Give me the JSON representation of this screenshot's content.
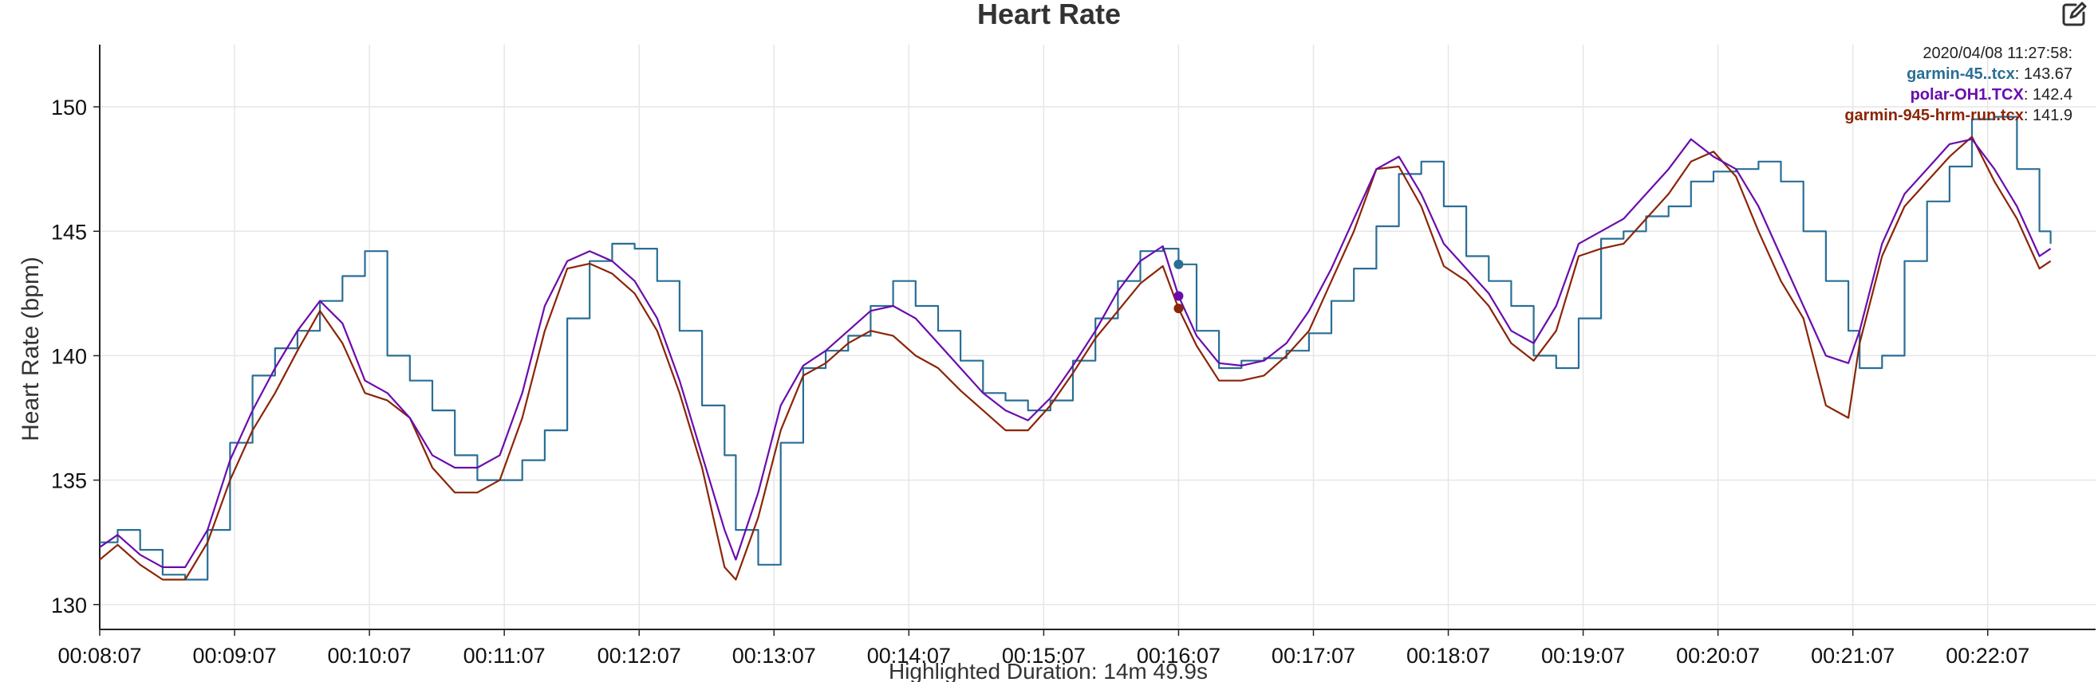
{
  "header": {
    "title": "Heart Rate",
    "edit_icon": "edit-square-pencil-icon"
  },
  "colors": {
    "garmin45": "#2a6e96",
    "polar": "#6a0dad",
    "garmin945": "#8b2508",
    "grid": "#e6e6e6",
    "axis": "#222222",
    "timestamp": "#222222"
  },
  "footer": {
    "highlighted_duration": "Highlighted Duration: 14m 49.9s"
  },
  "chart_data": {
    "type": "line",
    "title": "Heart Rate",
    "ylabel": "Heart Rate (bpm)",
    "xlabel": "",
    "ylim": [
      129,
      152.5
    ],
    "xlim_seconds": [
      487,
      1375
    ],
    "x_unit": "elapsed time (h:mm:ss)",
    "x_ticks": [
      "00:08:07",
      "00:09:07",
      "00:10:07",
      "00:11:07",
      "00:12:07",
      "00:13:07",
      "00:14:07",
      "00:15:07",
      "00:16:07",
      "00:17:07",
      "00:18:07",
      "00:19:07",
      "00:20:07",
      "00:21:07",
      "00:22:07"
    ],
    "y_ticks": [
      130,
      135,
      140,
      145,
      150
    ],
    "grid": true,
    "crosshair_time": "00:16:07",
    "tooltip": {
      "timestamp": "2020/04/08 11:27:58:",
      "entries": [
        {
          "name": "garmin-45..tcx",
          "value": "143.67"
        },
        {
          "name": "polar-OH1.TCX",
          "value": "142.4"
        },
        {
          "name": "garmin-945-hrm-run.tcx",
          "value": "141.9"
        }
      ]
    },
    "series": [
      {
        "name": "garmin-45..tcx",
        "color": "#2a6e96",
        "x": [
          "00:08:07",
          "00:08:15",
          "00:08:25",
          "00:08:35",
          "00:08:45",
          "00:08:55",
          "00:09:05",
          "00:09:15",
          "00:09:25",
          "00:09:35",
          "00:09:45",
          "00:09:55",
          "00:10:05",
          "00:10:15",
          "00:10:25",
          "00:10:35",
          "00:10:45",
          "00:10:55",
          "00:11:05",
          "00:11:15",
          "00:11:25",
          "00:11:35",
          "00:11:45",
          "00:11:55",
          "00:12:05",
          "00:12:15",
          "00:12:25",
          "00:12:35",
          "00:12:45",
          "00:12:50",
          "00:13:00",
          "00:13:10",
          "00:13:20",
          "00:13:30",
          "00:13:40",
          "00:13:50",
          "00:14:00",
          "00:14:10",
          "00:14:20",
          "00:14:30",
          "00:14:40",
          "00:14:50",
          "00:15:00",
          "00:15:10",
          "00:15:20",
          "00:15:30",
          "00:15:40",
          "00:15:50",
          "00:16:00",
          "00:16:07",
          "00:16:15",
          "00:16:25",
          "00:16:35",
          "00:16:45",
          "00:16:55",
          "00:17:05",
          "00:17:15",
          "00:17:25",
          "00:17:35",
          "00:17:45",
          "00:17:55",
          "00:18:05",
          "00:18:15",
          "00:18:25",
          "00:18:35",
          "00:18:45",
          "00:18:55",
          "00:19:05",
          "00:19:15",
          "00:19:25",
          "00:19:35",
          "00:19:45",
          "00:19:55",
          "00:20:05",
          "00:20:15",
          "00:20:25",
          "00:20:35",
          "00:20:45",
          "00:20:55",
          "00:21:05",
          "00:21:10",
          "00:21:20",
          "00:21:30",
          "00:21:40",
          "00:21:50",
          "00:22:00",
          "00:22:10",
          "00:22:20",
          "00:22:30",
          "00:22:35"
        ],
        "values": [
          132.5,
          133.0,
          132.2,
          131.2,
          131.0,
          133.0,
          136.5,
          139.2,
          140.3,
          141.0,
          142.2,
          143.2,
          144.2,
          140.0,
          139.0,
          137.8,
          136.0,
          135.0,
          135.0,
          135.8,
          137.0,
          141.5,
          143.8,
          144.5,
          144.3,
          143.0,
          141.0,
          138.0,
          136.0,
          133.0,
          131.6,
          136.5,
          139.5,
          140.2,
          140.8,
          142.0,
          143.0,
          142.0,
          141.0,
          139.8,
          138.5,
          138.2,
          137.8,
          138.2,
          139.8,
          141.5,
          143.0,
          144.2,
          144.3,
          143.67,
          141.0,
          139.5,
          139.8,
          139.9,
          140.2,
          140.9,
          142.2,
          143.5,
          145.2,
          147.3,
          147.8,
          146.0,
          144.0,
          143.0,
          142.0,
          140.0,
          139.5,
          141.5,
          144.7,
          145.0,
          145.6,
          146.0,
          147.0,
          147.4,
          147.5,
          147.8,
          147.0,
          145.0,
          143.0,
          141.0,
          139.5,
          140.0,
          143.8,
          146.2,
          147.6,
          149.5,
          149.6,
          147.5,
          145.0,
          144.5
        ]
      },
      {
        "name": "polar-OH1.TCX",
        "color": "#6a0dad",
        "x": [
          "00:08:07",
          "00:08:15",
          "00:08:25",
          "00:08:35",
          "00:08:45",
          "00:08:55",
          "00:09:05",
          "00:09:15",
          "00:09:25",
          "00:09:35",
          "00:09:45",
          "00:09:55",
          "00:10:05",
          "00:10:15",
          "00:10:25",
          "00:10:35",
          "00:10:45",
          "00:10:55",
          "00:11:05",
          "00:11:15",
          "00:11:25",
          "00:11:35",
          "00:11:45",
          "00:11:55",
          "00:12:05",
          "00:12:15",
          "00:12:25",
          "00:12:35",
          "00:12:45",
          "00:12:50",
          "00:13:00",
          "00:13:10",
          "00:13:20",
          "00:13:30",
          "00:13:40",
          "00:13:50",
          "00:14:00",
          "00:14:10",
          "00:14:20",
          "00:14:30",
          "00:14:40",
          "00:14:50",
          "00:15:00",
          "00:15:10",
          "00:15:20",
          "00:15:30",
          "00:15:40",
          "00:15:50",
          "00:16:00",
          "00:16:07",
          "00:16:15",
          "00:16:25",
          "00:16:35",
          "00:16:45",
          "00:16:55",
          "00:17:05",
          "00:17:15",
          "00:17:25",
          "00:17:35",
          "00:17:45",
          "00:17:55",
          "00:18:05",
          "00:18:15",
          "00:18:25",
          "00:18:35",
          "00:18:45",
          "00:18:55",
          "00:19:05",
          "00:19:15",
          "00:19:25",
          "00:19:35",
          "00:19:45",
          "00:19:55",
          "00:20:05",
          "00:20:15",
          "00:20:25",
          "00:20:35",
          "00:20:45",
          "00:20:55",
          "00:21:05",
          "00:21:10",
          "00:21:20",
          "00:21:30",
          "00:21:40",
          "00:21:50",
          "00:22:00",
          "00:22:10",
          "00:22:20",
          "00:22:30",
          "00:22:35"
        ],
        "values": [
          132.3,
          132.8,
          132.0,
          131.5,
          131.5,
          133.0,
          135.8,
          137.8,
          139.5,
          141.0,
          142.2,
          141.3,
          139.0,
          138.5,
          137.5,
          136.0,
          135.5,
          135.5,
          136.0,
          138.5,
          142.0,
          143.8,
          144.2,
          143.8,
          143.0,
          141.5,
          139.0,
          136.0,
          133.0,
          131.8,
          134.5,
          138.0,
          139.6,
          140.2,
          141.0,
          141.8,
          142.0,
          141.5,
          140.5,
          139.5,
          138.5,
          137.8,
          137.4,
          138.3,
          139.6,
          141.0,
          142.6,
          143.8,
          144.4,
          142.4,
          140.8,
          139.7,
          139.6,
          139.8,
          140.5,
          141.8,
          143.5,
          145.5,
          147.5,
          148.0,
          146.5,
          144.5,
          143.5,
          142.5,
          141.0,
          140.5,
          142.0,
          144.5,
          145.0,
          145.5,
          146.5,
          147.5,
          148.7,
          148.0,
          147.5,
          146.0,
          144.0,
          142.0,
          140.0,
          139.7,
          141.0,
          144.5,
          146.5,
          147.5,
          148.5,
          148.7,
          147.5,
          146.0,
          144.0,
          144.3
        ]
      },
      {
        "name": "garmin-945-hrm-run.tcx",
        "color": "#8b2508",
        "x": [
          "00:08:07",
          "00:08:15",
          "00:08:25",
          "00:08:35",
          "00:08:45",
          "00:08:55",
          "00:09:05",
          "00:09:15",
          "00:09:25",
          "00:09:35",
          "00:09:45",
          "00:09:55",
          "00:10:05",
          "00:10:15",
          "00:10:25",
          "00:10:35",
          "00:10:45",
          "00:10:55",
          "00:11:05",
          "00:11:15",
          "00:11:25",
          "00:11:35",
          "00:11:45",
          "00:11:55",
          "00:12:05",
          "00:12:15",
          "00:12:25",
          "00:12:35",
          "00:12:45",
          "00:12:50",
          "00:13:00",
          "00:13:10",
          "00:13:20",
          "00:13:30",
          "00:13:40",
          "00:13:50",
          "00:14:00",
          "00:14:10",
          "00:14:20",
          "00:14:30",
          "00:14:40",
          "00:14:50",
          "00:15:00",
          "00:15:10",
          "00:15:20",
          "00:15:30",
          "00:15:40",
          "00:15:50",
          "00:16:00",
          "00:16:07",
          "00:16:15",
          "00:16:25",
          "00:16:35",
          "00:16:45",
          "00:16:55",
          "00:17:05",
          "00:17:15",
          "00:17:25",
          "00:17:35",
          "00:17:45",
          "00:17:55",
          "00:18:05",
          "00:18:15",
          "00:18:25",
          "00:18:35",
          "00:18:45",
          "00:18:55",
          "00:19:05",
          "00:19:15",
          "00:19:25",
          "00:19:35",
          "00:19:45",
          "00:19:55",
          "00:20:05",
          "00:20:15",
          "00:20:25",
          "00:20:35",
          "00:20:45",
          "00:20:55",
          "00:21:05",
          "00:21:10",
          "00:21:20",
          "00:21:30",
          "00:21:40",
          "00:21:50",
          "00:22:00",
          "00:22:10",
          "00:22:20",
          "00:22:30",
          "00:22:35"
        ],
        "values": [
          131.8,
          132.4,
          131.6,
          131.0,
          131.0,
          132.5,
          135.0,
          137.0,
          138.5,
          140.2,
          141.8,
          140.5,
          138.5,
          138.2,
          137.5,
          135.5,
          134.5,
          134.5,
          135.0,
          137.5,
          141.0,
          143.5,
          143.7,
          143.3,
          142.5,
          141.0,
          138.5,
          135.5,
          131.5,
          131.0,
          133.5,
          137.0,
          139.2,
          139.7,
          140.5,
          141.0,
          140.8,
          140.0,
          139.5,
          138.6,
          137.8,
          137.0,
          137.0,
          138.0,
          139.3,
          140.7,
          141.8,
          142.9,
          143.6,
          141.9,
          140.4,
          139.0,
          139.0,
          139.2,
          140.0,
          141.0,
          143.0,
          145.0,
          147.5,
          147.6,
          146.0,
          143.6,
          143.0,
          142.0,
          140.5,
          139.8,
          141.0,
          144.0,
          144.3,
          144.5,
          145.5,
          146.5,
          147.8,
          148.2,
          147.2,
          145.0,
          143.0,
          141.5,
          138.0,
          137.5,
          140.5,
          144.0,
          146.0,
          147.0,
          148.0,
          148.8,
          147.0,
          145.5,
          143.5,
          143.8
        ]
      }
    ]
  }
}
